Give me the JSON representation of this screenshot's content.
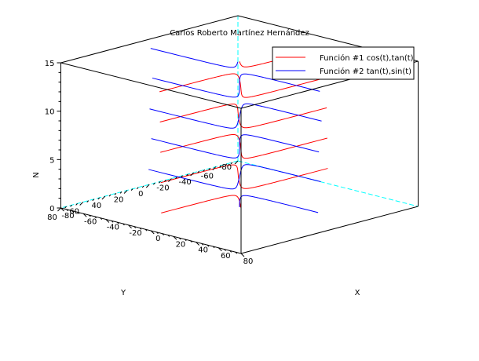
{
  "chart_data": {
    "type": "line",
    "projection": "3d",
    "title": "Carlos Roberto Martínez Hernández",
    "xlabel": "X",
    "ylabel": "Y",
    "zlabel": "N",
    "xlim": [
      -80,
      80
    ],
    "ylim": [
      -80,
      80
    ],
    "zlim": [
      0,
      15
    ],
    "x_ticks": [
      -80,
      -60,
      -40,
      -20,
      0,
      20,
      40,
      60,
      80
    ],
    "y_ticks": [
      -60,
      -40,
      -20,
      0,
      20,
      40,
      60,
      80
    ],
    "y_tick_min": -80,
    "z_ticks": [
      0,
      5,
      10,
      15
    ],
    "t_range": [
      0,
      15
    ],
    "legend_position": "top-right",
    "series": [
      {
        "name": "Función #1  cos(t),tan(t)",
        "x": "cos(t)",
        "y": "tan(t)",
        "z": "t",
        "color": "#ff0000"
      },
      {
        "name": "Función #2  tan(t),sin(t)",
        "x": "tan(t)",
        "y": "sin(t)",
        "z": "t",
        "color": "#0000ff"
      }
    ],
    "colors": {
      "box": "#000000",
      "hidden_edges": "#00ffff"
    }
  }
}
